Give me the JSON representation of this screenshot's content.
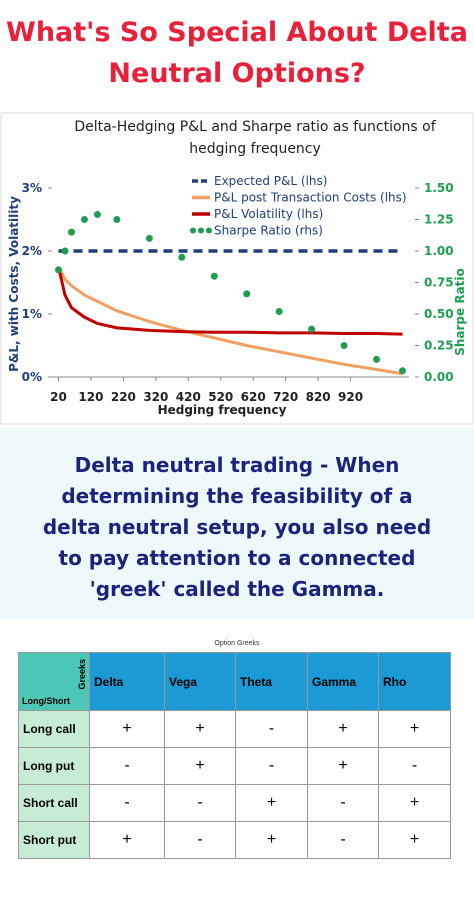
{
  "header": {
    "title": "What's So Special About Delta Neutral Options?"
  },
  "chart_data": {
    "type": "line",
    "title": "Delta-Hedging P&L and Sharpe ratio as functions of hedging frequency",
    "x_label": "Hedging frequency",
    "y_label": "P&L, with Costs, Volatility",
    "y2_label": "Sharpe Ratio",
    "x": [
      20,
      40,
      60,
      100,
      140,
      200,
      300,
      400,
      500,
      600,
      700,
      800,
      900,
      1000,
      1080
    ],
    "xlim": [
      0,
      1100
    ],
    "xticks": [
      20,
      120,
      220,
      320,
      420,
      520,
      620,
      720,
      820,
      920
    ],
    "ylim": [
      0,
      3
    ],
    "yticks": [
      {
        "value": 0,
        "label": "0%"
      },
      {
        "value": 1,
        "label": "1%"
      },
      {
        "value": 2,
        "label": "2%"
      },
      {
        "value": 3,
        "label": "3%"
      }
    ],
    "y2lim": [
      0,
      1.5
    ],
    "y2ticks": [
      {
        "value": 0,
        "label": "0.00"
      },
      {
        "value": 0.25,
        "label": "0.25"
      },
      {
        "value": 0.5,
        "label": "0.50"
      },
      {
        "value": 0.75,
        "label": "0.75"
      },
      {
        "value": 1,
        "label": "1.00"
      },
      {
        "value": 1.25,
        "label": "1.25"
      },
      {
        "value": 1.5,
        "label": "1.50"
      }
    ],
    "legend": "top-right",
    "grid": false,
    "series": [
      {
        "name": "Expected P&L (lhs)",
        "color": "#1f3f7a",
        "style": "dashed",
        "values": [
          2,
          2,
          2,
          2,
          2,
          2,
          2,
          2,
          2,
          2,
          2,
          2,
          2,
          2,
          2
        ]
      },
      {
        "name": "P&L post Transaction Costs (lhs)",
        "color": "#f0a060",
        "style": "solid",
        "values": [
          1.75,
          1.55,
          1.45,
          1.3,
          1.2,
          1.05,
          0.88,
          0.74,
          0.62,
          0.5,
          0.4,
          0.3,
          0.2,
          0.12,
          0.05
        ]
      },
      {
        "name": "P&L Volatility (lhs)",
        "color": "#c00000",
        "style": "solid",
        "values": [
          1.75,
          1.3,
          1.1,
          0.95,
          0.85,
          0.78,
          0.74,
          0.72,
          0.71,
          0.71,
          0.7,
          0.7,
          0.69,
          0.69,
          0.68
        ]
      },
      {
        "name": "Sharpe Ratio (rhs)",
        "color": "#1e9e50",
        "style": "dotted",
        "axis": "y2",
        "values": [
          0.85,
          1.0,
          1.15,
          1.25,
          1.29,
          1.25,
          1.1,
          0.95,
          0.8,
          0.66,
          0.52,
          0.38,
          0.25,
          0.14,
          0.05
        ]
      }
    ]
  },
  "text": {
    "body": "Delta neutral trading - When determining the feasibility of a delta neutral setup, you also need to pay attention to a connected 'greek' called the Gamma."
  },
  "table": {
    "caption": "Option Greeks",
    "corner_top": "Greeks",
    "corner_bottom": "Long/Short",
    "columns": [
      "Delta",
      "Vega",
      "Theta",
      "Gamma",
      "Rho"
    ],
    "rows": [
      [
        "Long call",
        "+",
        "+",
        "-",
        "+",
        "+"
      ],
      [
        "Long put",
        "-",
        "+",
        "-",
        "+",
        "-"
      ],
      [
        "Short call",
        "-",
        "-",
        "+",
        "-",
        "+"
      ],
      [
        "Short put",
        "+",
        "-",
        "+",
        "-",
        "+"
      ]
    ]
  }
}
